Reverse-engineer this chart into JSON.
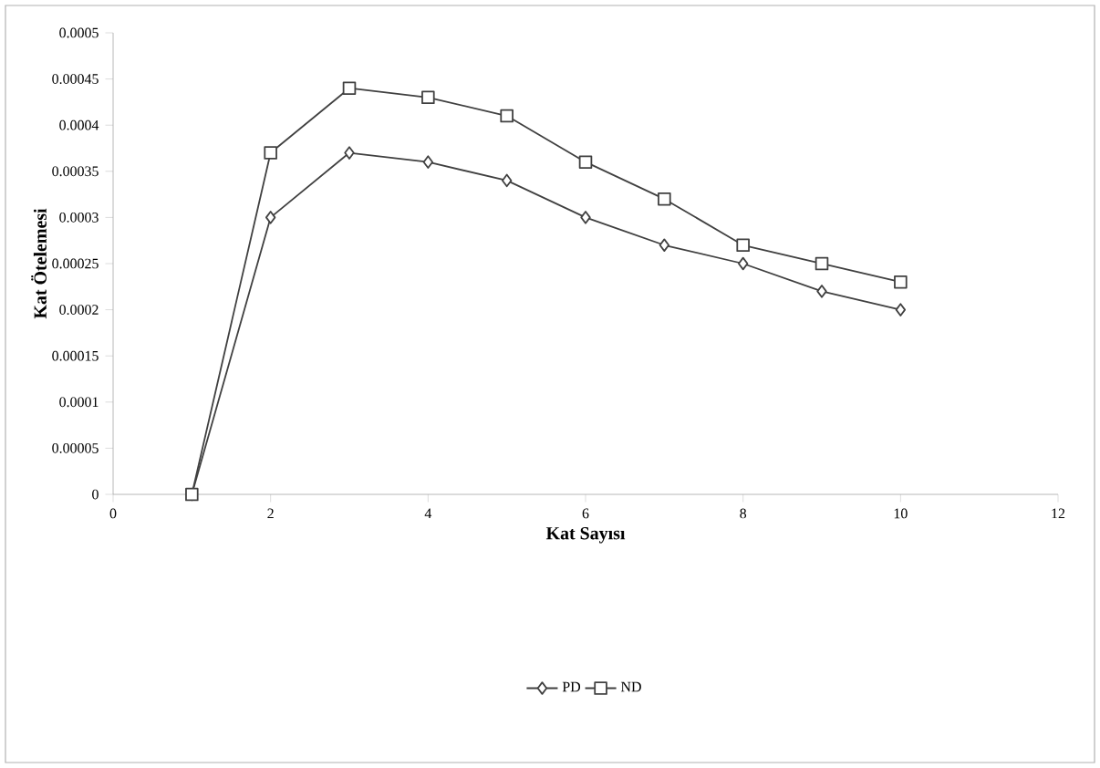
{
  "chart_data": {
    "type": "line",
    "xlabel": "Kat Sayısı",
    "ylabel": "Kat Ötelemesi",
    "x": [
      1,
      2,
      3,
      4,
      5,
      6,
      7,
      8,
      9,
      10
    ],
    "series": [
      {
        "name": "PD",
        "color": "#404040",
        "marker": "diamond",
        "values": [
          0,
          0.0003,
          0.00037,
          0.00036,
          0.00034,
          0.0003,
          0.00027,
          0.00025,
          0.00022,
          0.0002
        ]
      },
      {
        "name": "ND",
        "color": "#404040",
        "marker": "square",
        "values": [
          0,
          0.00037,
          0.00044,
          0.00043,
          0.00041,
          0.00036,
          0.00032,
          0.00027,
          0.00025,
          0.00023
        ]
      }
    ],
    "xlim": [
      0,
      12
    ],
    "xticks": [
      0,
      2,
      4,
      6,
      8,
      10,
      12
    ],
    "ylim": [
      0,
      0.0005
    ],
    "yticks": [
      0,
      {
        "value": 5e-05,
        "label": "0.00005"
      },
      {
        "value": 0.0001,
        "label": "0.0001"
      },
      {
        "value": 0.00015,
        "label": "0.00015"
      },
      {
        "value": 0.0002,
        "label": "0.0002"
      },
      {
        "value": 0.00025,
        "label": "0.00025"
      },
      {
        "value": 0.0003,
        "label": "0.0003"
      },
      {
        "value": 0.00035,
        "label": "0.00035"
      },
      {
        "value": 0.0004,
        "label": "0.0004"
      },
      {
        "value": 0.00045,
        "label": "0.00045"
      },
      {
        "value": 0.0005,
        "label": "0.0005"
      }
    ],
    "grid": false,
    "legend": "bottom",
    "line_style": "solid"
  }
}
